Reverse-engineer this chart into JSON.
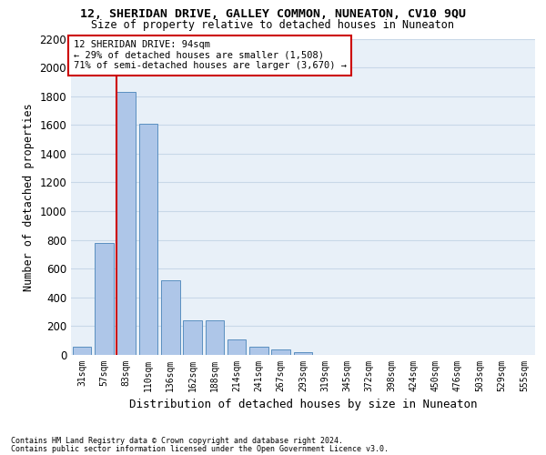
{
  "title": "12, SHERIDAN DRIVE, GALLEY COMMON, NUNEATON, CV10 9QU",
  "subtitle": "Size of property relative to detached houses in Nuneaton",
  "xlabel": "Distribution of detached houses by size in Nuneaton",
  "ylabel": "Number of detached properties",
  "categories": [
    "31sqm",
    "57sqm",
    "83sqm",
    "110sqm",
    "136sqm",
    "162sqm",
    "188sqm",
    "214sqm",
    "241sqm",
    "267sqm",
    "293sqm",
    "319sqm",
    "345sqm",
    "372sqm",
    "398sqm",
    "424sqm",
    "450sqm",
    "476sqm",
    "503sqm",
    "529sqm",
    "555sqm"
  ],
  "values": [
    55,
    780,
    1830,
    1610,
    520,
    240,
    240,
    110,
    60,
    40,
    20,
    0,
    0,
    0,
    0,
    0,
    0,
    0,
    0,
    0,
    0
  ],
  "bar_color": "#aec6e8",
  "bar_edge_color": "#5a8fc0",
  "annotation_line1": "12 SHERIDAN DRIVE: 94sqm",
  "annotation_line2": "← 29% of detached houses are smaller (1,508)",
  "annotation_line3": "71% of semi-detached houses are larger (3,670) →",
  "ylim": [
    0,
    2200
  ],
  "yticks": [
    0,
    200,
    400,
    600,
    800,
    1000,
    1200,
    1400,
    1600,
    1800,
    2000,
    2200
  ],
  "footnote1": "Contains HM Land Registry data © Crown copyright and database right 2024.",
  "footnote2": "Contains public sector information licensed under the Open Government Licence v3.0.",
  "grid_color": "#c8d8e8",
  "bg_color": "#e8f0f8",
  "annotation_box_color": "#ffffff",
  "annotation_box_edge": "#cc0000",
  "red_line_color": "#cc0000",
  "title_fontsize": 9.5,
  "subtitle_fontsize": 8.5
}
